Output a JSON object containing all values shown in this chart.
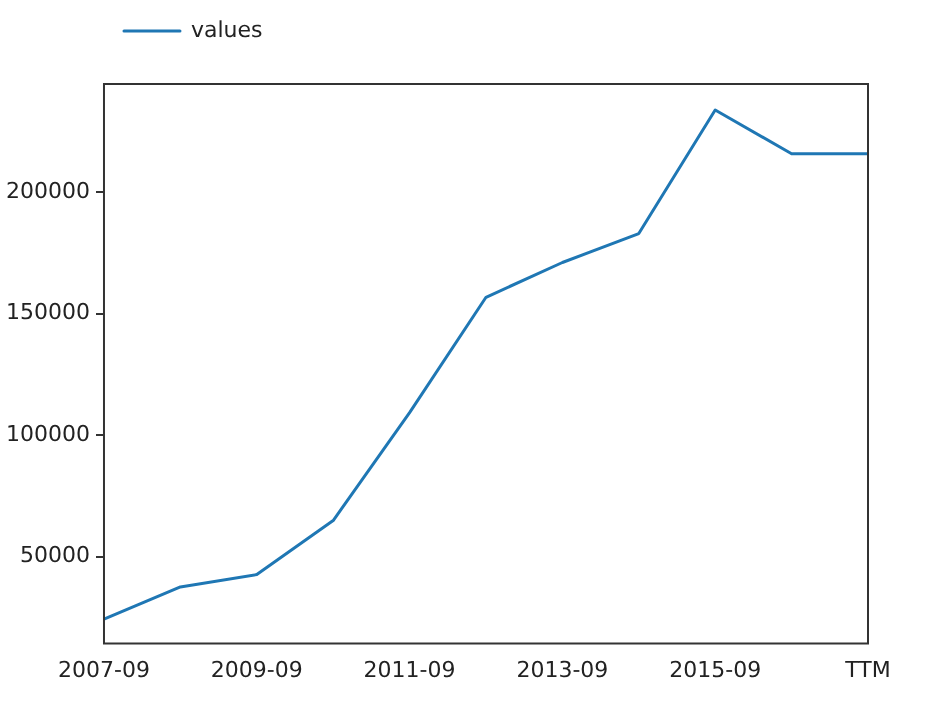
{
  "chart_data": {
    "type": "line",
    "categories": [
      "2007-09",
      null,
      "2009-09",
      null,
      "2011-09",
      null,
      "2013-09",
      null,
      "2015-09",
      null,
      "TTM"
    ],
    "series": [
      {
        "name": "values",
        "color": "#1f77b4",
        "values": [
          24400,
          37600,
          42700,
          64900,
          109300,
          156700,
          171000,
          182900,
          233700,
          215700,
          215700
        ]
      }
    ],
    "ylim": [
      14300,
      244400
    ],
    "yticks": [
      50000,
      100000,
      150000,
      200000
    ],
    "legend": "top left",
    "grid": false,
    "marker": "none",
    "line_style": "solid"
  }
}
